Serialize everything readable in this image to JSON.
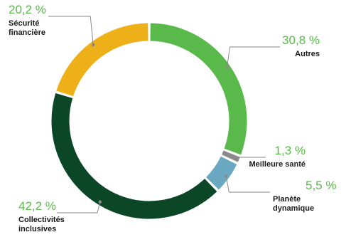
{
  "chart_data": {
    "type": "pie",
    "variant": "donut",
    "start": "top",
    "direction": "clockwise",
    "slices": [
      {
        "label": "Autres",
        "label_lines": [
          "Autres"
        ],
        "value": 30.8,
        "display": "30,8 %",
        "color": "#5ab94b",
        "label_side": "right"
      },
      {
        "label": "Meilleure santé",
        "label_lines": [
          "Meilleure santé"
        ],
        "value": 1.3,
        "display": "1,3 %",
        "color": "#8c8c8c",
        "label_side": "right"
      },
      {
        "label": "Planète dynamique",
        "label_lines": [
          "Planète",
          "dynamique"
        ],
        "value": 5.5,
        "display": "5,5 %",
        "color": "#6aa7c0",
        "label_side": "right"
      },
      {
        "label": "Collectivités inclusives",
        "label_lines": [
          "Collectivités",
          "inclusives"
        ],
        "value": 42.2,
        "display": "42,2 %",
        "color": "#0b4726",
        "label_side": "left"
      },
      {
        "label": "Sécurité financière",
        "label_lines": [
          "Sécurité",
          "financière"
        ],
        "value": 20.2,
        "display": "20,2 %",
        "color": "#eeb018",
        "label_side": "left"
      }
    ],
    "percent_color": "#5ab94b"
  }
}
